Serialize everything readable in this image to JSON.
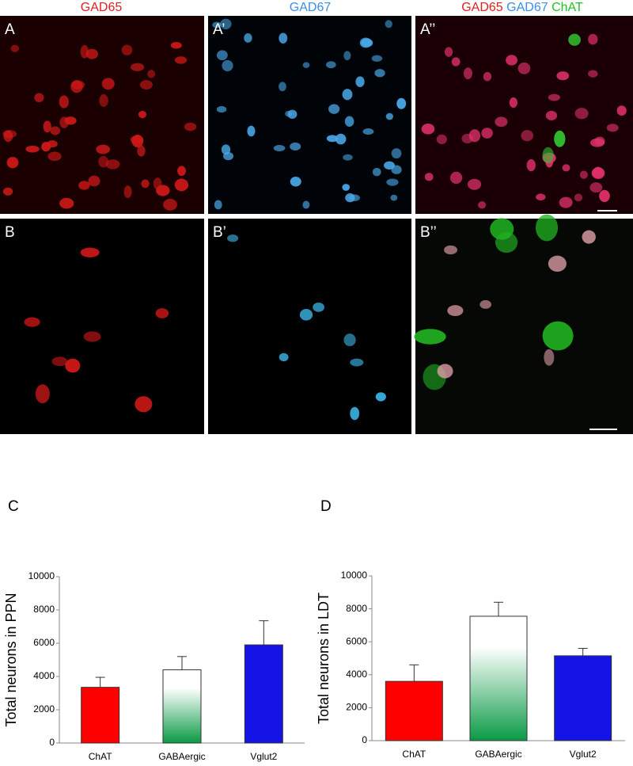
{
  "headers": {
    "a": "GAD65",
    "b": "GAD67",
    "merge": [
      "GAD65",
      "GAD67",
      "ChAT"
    ]
  },
  "panel_labels": [
    "A",
    "A’",
    "A’’",
    "B",
    "B’",
    "B’’"
  ],
  "chart_data": [
    {
      "type": "bar",
      "label": "C",
      "y_label": "Total neurons in PPN",
      "categories": [
        "ChAT",
        "GABAergic",
        "Vglut2"
      ],
      "values": [
        3350,
        4400,
        5900
      ],
      "errors": [
        600,
        800,
        1450
      ],
      "colors": [
        "#ff0000",
        "#0a9a45",
        "#1414e6"
      ],
      "fill_style": [
        "solid",
        "gradient",
        "solid"
      ],
      "ylim": [
        0,
        10000
      ],
      "yticks": [
        0,
        2000,
        4000,
        6000,
        8000,
        10000
      ]
    },
    {
      "type": "bar",
      "label": "D",
      "y_label": "Total neurons in LDT",
      "categories": [
        "ChAT",
        "GABAergic",
        "Vglut2"
      ],
      "values": [
        3600,
        7550,
        5150
      ],
      "errors": [
        1000,
        850,
        450
      ],
      "colors": [
        "#ff0000",
        "#0a9a45",
        "#1414e6"
      ],
      "fill_style": [
        "solid",
        "gradient",
        "solid"
      ],
      "ylim": [
        0,
        10000
      ],
      "yticks": [
        0,
        2000,
        4000,
        6000,
        8000,
        10000
      ]
    }
  ]
}
